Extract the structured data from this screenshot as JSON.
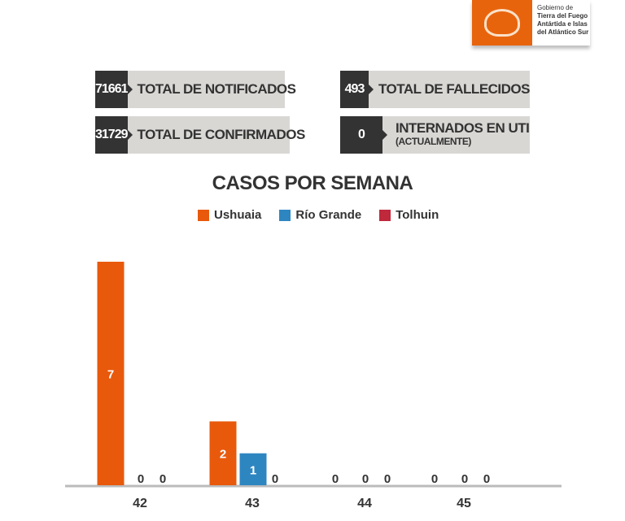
{
  "logo": {
    "lines": [
      "Gobierno de",
      "Tierra del Fuego",
      "Antártida e Islas",
      "del Atlántico Sur"
    ]
  },
  "stats": [
    {
      "value": "71661",
      "label": "TOTAL DE NOTIFICADOS"
    },
    {
      "value": "493",
      "label": "TOTAL DE FALLECIDOS"
    },
    {
      "value": "31729",
      "label": "TOTAL DE CONFIRMADOS"
    },
    {
      "value": "0",
      "label": "INTERNADOS EN UTI",
      "sublabel": "(ACTUALMENTE)"
    }
  ],
  "colors": {
    "Ushuaia": "#e8590c",
    "Río Grande": "#2e86c1",
    "Tolhuin": "#c0283c"
  },
  "chart_data": {
    "type": "bar",
    "title": "CASOS POR SEMANA",
    "categories": [
      "42",
      "43",
      "44",
      "45"
    ],
    "series": [
      {
        "name": "Ushuaia",
        "values": [
          7,
          2,
          0,
          0
        ]
      },
      {
        "name": "Río Grande",
        "values": [
          0,
          1,
          0,
          0
        ]
      },
      {
        "name": "Tolhuin",
        "values": [
          0,
          0,
          0,
          0
        ]
      }
    ],
    "legend": "top",
    "ylim": [
      0,
      7
    ]
  }
}
